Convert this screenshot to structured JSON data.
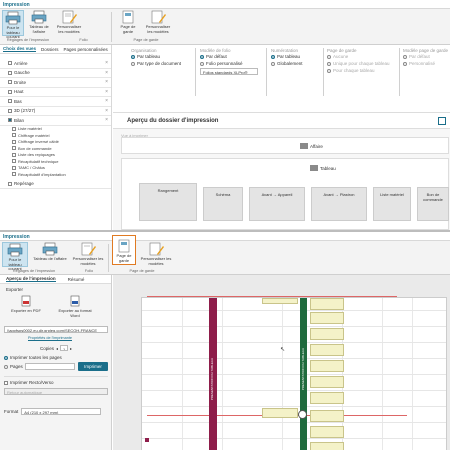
{
  "top": {
    "tab": "Impression",
    "ribbon": {
      "btn_pour_tableau": "Pour le tableau courant",
      "btn_tableau_affaire": "Tableau de l'affaire",
      "btn_personnaliser": "Personnaliser les modèles",
      "btn_page_garde": "Page de garde",
      "btn_personnaliser2": "Personnaliser les modèles",
      "group_reglages": "Réglages de l'impression",
      "group_folio": "Folio",
      "group_page_garde": "Page de garde"
    },
    "tabs": [
      "Choix des vues",
      "Dossiers",
      "Pages personnalisées"
    ],
    "list": {
      "items": [
        {
          "label": "Arrière"
        },
        {
          "label": "Gauche"
        },
        {
          "label": "Droite"
        },
        {
          "label": "Haut"
        },
        {
          "label": "Bas"
        },
        {
          "label": "3D (27/27)"
        },
        {
          "label": "Bilan",
          "checked": true
        }
      ],
      "subitems": [
        "Liste matériel",
        "Chiffrage matériel",
        "Chiffrage inversé câblé",
        "Bon de commande",
        "Liste des repiquages",
        "Récapitulatif technique",
        "TAMC / Châlus",
        "Récapitulatif d'implantation"
      ],
      "last": "Repérage"
    },
    "options": {
      "organisation": "Organisation",
      "org_opts": [
        "Par tableau",
        "Par type de document"
      ],
      "modele_folio": "Modèle de folio",
      "folio_opts": [
        "Par défaut",
        "Folio personnalisé"
      ],
      "folio_select": "Folios standards XLPro®",
      "numerotation": "Numérotation",
      "num_opts": [
        "Par tableau",
        "Globalement"
      ],
      "page_garde": "Page de garde",
      "pg_opts": [
        "Aucune",
        "Unique pour chaque tableau",
        "Pour chaque tableau"
      ],
      "modele_pg": "Modèle page de garde",
      "mpg_opts": [
        "Par défaut",
        "Personnalisé"
      ]
    },
    "apercu": {
      "title": "Aperçu du dossier d'impression",
      "placeholder": "Vue à imprimer",
      "affaire": "Affaire",
      "tableau": "Tableau",
      "tiles": [
        "Rangement",
        "Schéma",
        "Avant → Appareil",
        "Avant → Plastron",
        "Liste matériel",
        "Bon de commande"
      ]
    }
  },
  "bottom": {
    "tab": "Impression",
    "ribbon": {
      "btn_pour_tableau": "Pour le tableau courant",
      "btn_tableau_affaire": "Tableau de l'affaire",
      "btn_personnaliser": "Personnaliser les modèles",
      "btn_page_garde": "Page de garde",
      "btn_personnaliser2": "Personnaliser les modèles",
      "group_reglages": "Réglages de l'impression",
      "group_folio": "Folio",
      "group_page_garde": "Page de garde"
    },
    "panel": {
      "tabs": [
        "Aperçu de l'impression",
        "Résumé"
      ],
      "exporter": "Exporter",
      "export_pdf": "Exporter en PDF",
      "export_dwg": "Exporter au format Word",
      "printer": "\\\\appfsps0002.eu.dir.grpleg.com\\SECOH-FRANCE",
      "printer_props": "Propriétés de l'imprimante",
      "copies_label": "Copies",
      "copies_value": "1",
      "print_all": "Imprimer toutes les pages",
      "pages_label": "Pages",
      "imprimer_btn": "Imprimer",
      "recto_verso": "Imprimer Recto/Verso",
      "retour_auto": "Retour automatique",
      "format_label": "Format",
      "format_value": "A4 (210 x 297 mm)"
    },
    "vertical_label": "PRESENTATION DU TABLEAU"
  }
}
